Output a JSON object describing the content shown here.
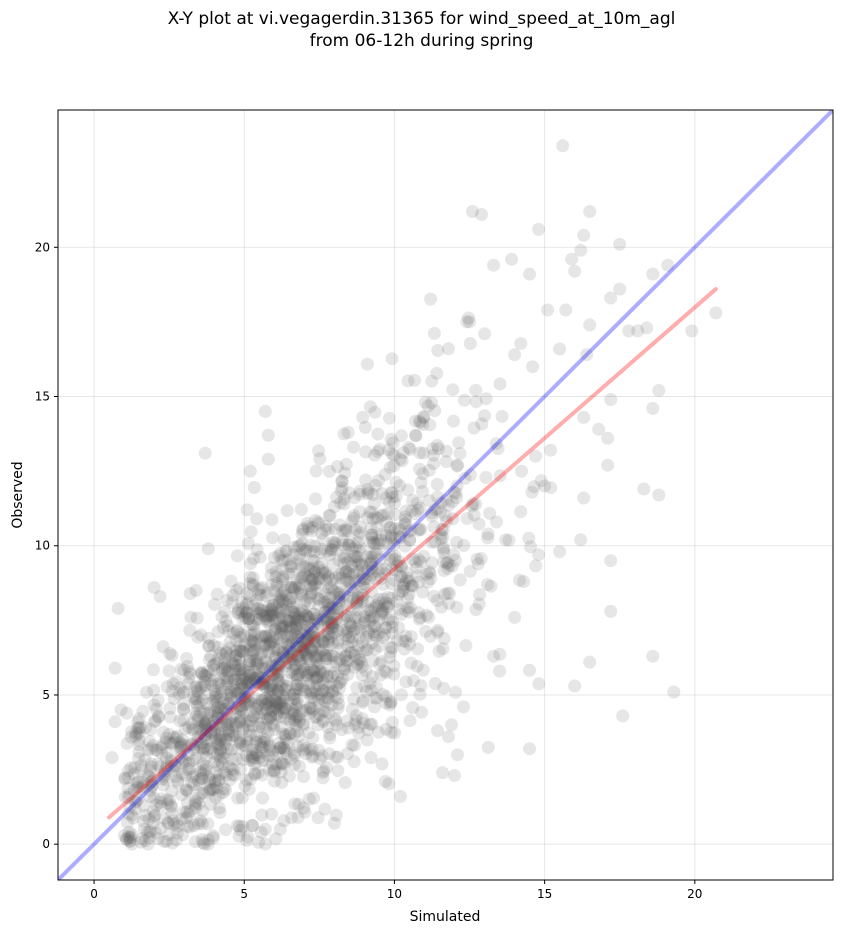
{
  "chart_data": {
    "type": "scatter",
    "title_line1": "X-Y plot at vi.vegagerdin.31365 for wind_speed_at_10m_agl",
    "title_line2": "from 06-12h during spring",
    "xlabel": "Simulated",
    "ylabel": "Observed",
    "xlim": [
      -1.2,
      24.6
    ],
    "ylim": [
      -1.2,
      24.6
    ],
    "xticks": [
      0,
      5,
      10,
      15,
      20
    ],
    "yticks": [
      0,
      5,
      10,
      15,
      20
    ],
    "grid": true,
    "point_color": "#555555",
    "point_opacity": 0.15,
    "identity_line": {
      "color": "#0000ff",
      "opacity": 0.32,
      "from": [
        -1.2,
        -1.2
      ],
      "to": [
        24.6,
        24.6
      ]
    },
    "fit_line": {
      "color": "#ff0000",
      "opacity": 0.32,
      "from": [
        0.5,
        0.9
      ],
      "to": [
        20.7,
        18.6
      ]
    },
    "outlier_points": [
      [
        15.6,
        23.4
      ],
      [
        12.6,
        21.2
      ],
      [
        12.9,
        21.1
      ],
      [
        16.5,
        21.2
      ],
      [
        14.8,
        20.6
      ],
      [
        16.3,
        20.4
      ],
      [
        17.5,
        20.1
      ],
      [
        19.1,
        19.4
      ],
      [
        18.6,
        19.1
      ],
      [
        15.9,
        19.6
      ],
      [
        16.2,
        19.9
      ],
      [
        16.0,
        19.2
      ],
      [
        13.3,
        19.4
      ],
      [
        13.9,
        19.6
      ],
      [
        14.5,
        19.1
      ],
      [
        17.5,
        18.6
      ],
      [
        17.2,
        18.3
      ],
      [
        20.7,
        17.8
      ],
      [
        19.9,
        17.2
      ],
      [
        18.1,
        17.2
      ],
      [
        16.5,
        17.4
      ],
      [
        15.7,
        17.9
      ],
      [
        15.1,
        17.9
      ],
      [
        12.5,
        17.5
      ],
      [
        11.8,
        16.6
      ],
      [
        13.0,
        17.1
      ],
      [
        14.0,
        16.4
      ],
      [
        14.6,
        16.0
      ],
      [
        16.4,
        16.4
      ],
      [
        17.8,
        17.2
      ],
      [
        18.4,
        17.3
      ],
      [
        18.8,
        15.2
      ],
      [
        18.6,
        14.6
      ],
      [
        17.2,
        14.9
      ],
      [
        16.8,
        13.9
      ],
      [
        17.1,
        13.6
      ],
      [
        17.1,
        12.7
      ],
      [
        18.3,
        11.9
      ],
      [
        18.8,
        11.7
      ],
      [
        16.3,
        11.6
      ],
      [
        16.2,
        10.2
      ],
      [
        15.5,
        9.8
      ],
      [
        14.8,
        9.7
      ],
      [
        13.7,
        10.2
      ],
      [
        15.0,
        12.0
      ],
      [
        16.3,
        14.3
      ],
      [
        14.7,
        13.0
      ],
      [
        15.2,
        13.2
      ],
      [
        3.7,
        13.1
      ],
      [
        5.2,
        12.5
      ],
      [
        5.8,
        12.9
      ],
      [
        5.7,
        14.5
      ],
      [
        5.8,
        13.7
      ],
      [
        5.1,
        11.2
      ],
      [
        3.8,
        9.9
      ],
      [
        0.8,
        7.9
      ],
      [
        0.7,
        5.9
      ],
      [
        2.0,
        8.6
      ],
      [
        2.2,
        8.3
      ],
      [
        3.2,
        8.4
      ],
      [
        3.4,
        8.5
      ],
      [
        17.2,
        9.5
      ],
      [
        17.2,
        7.8
      ],
      [
        16.5,
        6.1
      ],
      [
        18.6,
        6.3
      ],
      [
        19.3,
        5.1
      ],
      [
        16.0,
        5.3
      ],
      [
        17.6,
        4.3
      ],
      [
        14.5,
        3.2
      ],
      [
        12.3,
        4.6
      ],
      [
        13.1,
        8.7
      ],
      [
        14.0,
        7.6
      ],
      [
        14.3,
        8.8
      ],
      [
        13.3,
        6.3
      ],
      [
        13.5,
        5.8
      ],
      [
        11.8,
        3.6
      ],
      [
        10.2,
        1.6
      ],
      [
        9.7,
        2.1
      ],
      [
        8.0,
        0.7
      ],
      [
        6.2,
        0.5
      ],
      [
        5.7,
        0.5
      ],
      [
        3.8,
        0.0
      ],
      [
        1.8,
        0.0
      ],
      [
        1.2,
        0.1
      ],
      [
        0.6,
        2.9
      ],
      [
        0.7,
        4.1
      ],
      [
        0.9,
        4.5
      ],
      [
        1.5,
        4.2
      ],
      [
        11.6,
        2.4
      ],
      [
        12.0,
        2.3
      ],
      [
        11.9,
        4.0
      ],
      [
        12.1,
        3.0
      ]
    ],
    "cloud": {
      "description_points": 2100,
      "center_x": 6.6,
      "center_y": 6.6,
      "slope": 0.83,
      "intercept": 0.8
    }
  }
}
